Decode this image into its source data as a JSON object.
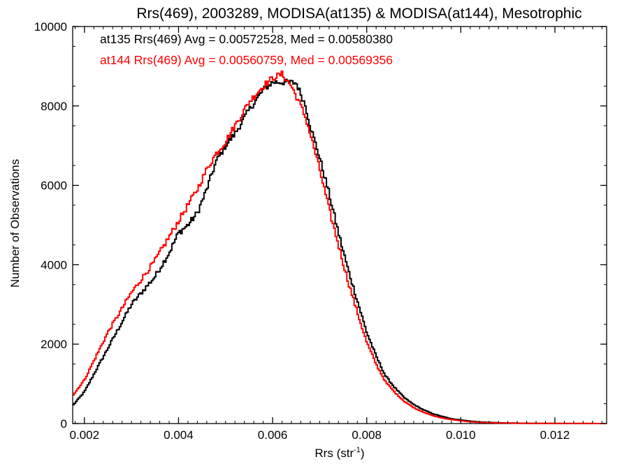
{
  "chart_data": {
    "type": "line",
    "title": "Rrs(469), 2003289, MODISA(at135) & MODISA(at144), Mesotrophic",
    "xlabel": "Rrs (str",
    "xlabel_sup": "-1",
    "xlabel_end": ")",
    "ylabel": "Number of Observations",
    "xlim": [
      0.00175,
      0.0131
    ],
    "ylim": [
      0,
      10000
    ],
    "x_ticks": [
      0.002,
      0.004,
      0.006,
      0.008,
      0.01,
      0.012
    ],
    "x_tick_labels": [
      "0.002",
      "0.004",
      "0.006",
      "0.008",
      "0.010",
      "0.012"
    ],
    "y_ticks": [
      0,
      2000,
      4000,
      6000,
      8000,
      10000
    ],
    "y_tick_labels": [
      "0",
      "2000",
      "4000",
      "6000",
      "8000",
      "10000"
    ],
    "grid": false,
    "legend_position": "top-left",
    "colors": {
      "at135": "#000000",
      "at144": "#ff0000"
    },
    "series": [
      {
        "name": "at135",
        "legend_text": "at135 Rrs(469) Avg = 0.00572528, Med = 0.00580380",
        "color": "#000000",
        "x": [
          0.00175,
          0.002,
          0.0025,
          0.003,
          0.0035,
          0.0038,
          0.004,
          0.0042,
          0.0044,
          0.0046,
          0.0048,
          0.005,
          0.0052,
          0.0055,
          0.0058,
          0.006,
          0.0062,
          0.0065,
          0.0066,
          0.0067,
          0.0068,
          0.007,
          0.0072,
          0.0074,
          0.0076,
          0.0078,
          0.008,
          0.0082,
          0.0084,
          0.0086,
          0.0088,
          0.009,
          0.0092,
          0.0094,
          0.0096,
          0.0098,
          0.01,
          0.0102,
          0.0104,
          0.0108,
          0.0112,
          0.0116,
          0.012,
          0.0124,
          0.0128,
          0.0131
        ],
        "y": [
          450,
          800,
          1900,
          3000,
          3700,
          4300,
          4800,
          5000,
          5300,
          5900,
          6600,
          7000,
          7300,
          7900,
          8400,
          8600,
          8600,
          8580,
          8300,
          8000,
          7500,
          6700,
          5800,
          4800,
          3900,
          3100,
          2300,
          1700,
          1200,
          900,
          650,
          480,
          350,
          250,
          180,
          120,
          90,
          60,
          40,
          20,
          10,
          5,
          3,
          2,
          1,
          0
        ]
      },
      {
        "name": "at144",
        "legend_text": "at144 Rrs(469) Avg = 0.00560759, Med = 0.00569356",
        "color": "#ff0000",
        "x": [
          0.00175,
          0.002,
          0.0025,
          0.003,
          0.0035,
          0.0038,
          0.004,
          0.0042,
          0.0044,
          0.0046,
          0.0048,
          0.005,
          0.0052,
          0.0055,
          0.0058,
          0.006,
          0.0062,
          0.0064,
          0.0066,
          0.0067,
          0.0068,
          0.007,
          0.0072,
          0.0074,
          0.0076,
          0.0078,
          0.008,
          0.0082,
          0.0084,
          0.0086,
          0.0088,
          0.009,
          0.0092,
          0.0094,
          0.0096,
          0.0098,
          0.01,
          0.0102,
          0.0104,
          0.0108,
          0.0112,
          0.0116,
          0.012,
          0.0124,
          0.0128,
          0.0131
        ],
        "y": [
          700,
          1100,
          2300,
          3300,
          4100,
          4700,
          5100,
          5500,
          5900,
          6400,
          6800,
          7100,
          7500,
          8100,
          8500,
          8700,
          8800,
          8500,
          8000,
          7700,
          7300,
          6400,
          5400,
          4500,
          3600,
          2800,
          2050,
          1500,
          1050,
          780,
          560,
          400,
          290,
          200,
          140,
          100,
          70,
          45,
          30,
          15,
          8,
          4,
          2,
          1,
          1,
          0
        ]
      }
    ]
  }
}
